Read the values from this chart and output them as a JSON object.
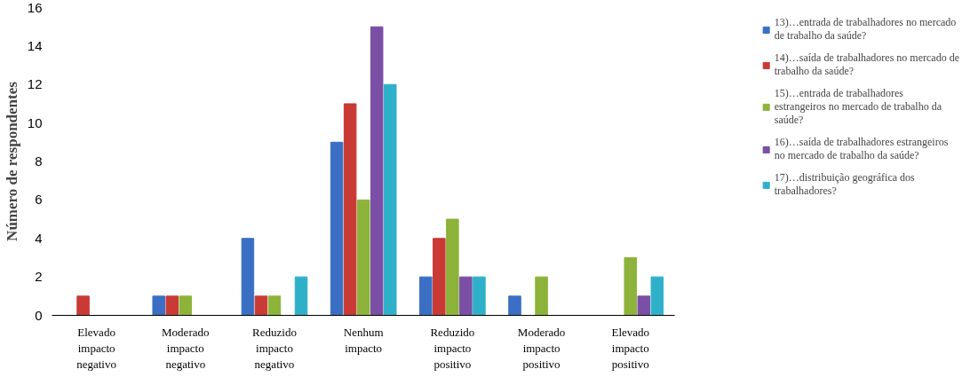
{
  "chart_data": {
    "type": "bar",
    "ylabel": "Número de respondentes",
    "categories": [
      "Elevado impacto negativo",
      "Moderado impacto negativo",
      "Reduzido impacto negativo",
      "Nenhum impacto",
      "Reduzido impacto positivo",
      "Moderado impacto positivo",
      "Elevado impacto positivo"
    ],
    "series": [
      {
        "name": "13)…entrada de trabalhadores no mercado de trabalho da saúde?",
        "color": "#3a6fc4",
        "values": [
          0,
          1,
          4,
          9,
          2,
          1,
          0
        ]
      },
      {
        "name": "14)…saída de trabalhadores no mercado de trabalho da saúde?",
        "color": "#c93a35",
        "values": [
          1,
          1,
          1,
          11,
          4,
          0,
          0
        ]
      },
      {
        "name": "15)…entrada de trabalhadores estrangeiros no mercado de trabalho da saúde?",
        "color": "#8db33a",
        "values": [
          0,
          1,
          1,
          6,
          5,
          2,
          3
        ]
      },
      {
        "name": "16)…saída de trabalhadores estrangeiros no mercado de trabalho da saúde?",
        "color": "#7a4fa5",
        "values": [
          0,
          0,
          0,
          15,
          2,
          0,
          1
        ]
      },
      {
        "name": "17)…distribuição geográfica dos trabalhadores?",
        "color": "#2fb0c9",
        "values": [
          0,
          0,
          2,
          12,
          2,
          0,
          2
        ]
      }
    ],
    "ylim": [
      0,
      16
    ],
    "yticks": [
      0,
      2,
      4,
      6,
      8,
      10,
      12,
      14,
      16
    ],
    "grid": false,
    "legend": "right"
  }
}
